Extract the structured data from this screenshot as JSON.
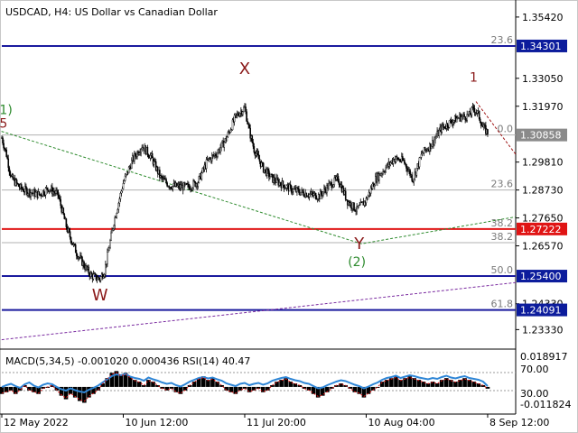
{
  "header": {
    "title": "USDCAD, H4:  US Dollar vs Canadian Dollar"
  },
  "colors": {
    "background": "#ffffff",
    "candle": "#000000",
    "blue_line": "#1a1a9e",
    "red_line": "#e01414",
    "grey_line": "#b0b0b0",
    "fib_text": "#7a7a7a",
    "green": "#2e8b2e",
    "dark_red": "#a01818",
    "wave_dark_red": "#8b1a1a",
    "purple": "#7a2aa0",
    "macd_line": "#2f86d6",
    "highlight_blue": "#0c1c9c",
    "highlight_red": "#e01414",
    "highlight_grey": "#8a8a8a"
  },
  "price_axis": {
    "min": 1.2275,
    "max": 1.358,
    "ticks": [
      "1.35420",
      "1.33050",
      "1.31970",
      "1.29810",
      "1.28730",
      "1.27650",
      "1.26570",
      "1.24330",
      "1.23330"
    ],
    "tick_values": [
      1.3542,
      1.3305,
      1.3197,
      1.2981,
      1.2873,
      1.2765,
      1.2657,
      1.2433,
      1.2333
    ]
  },
  "price_highlights": [
    {
      "label": "1.34301",
      "value": 1.34301,
      "style": "blue"
    },
    {
      "label": "1.30858",
      "value": 1.30858,
      "style": "grey"
    },
    {
      "label": "1.27222",
      "value": 1.27222,
      "style": "red"
    },
    {
      "label": "1.25400",
      "value": 1.254,
      "style": "blue"
    },
    {
      "label": "1.24091",
      "value": 1.24091,
      "style": "blue"
    }
  ],
  "fib_levels": [
    {
      "label": "23.6",
      "value": 1.34301,
      "line": "blue"
    },
    {
      "label": "0.0",
      "value": 1.30858,
      "line": "grey"
    },
    {
      "label": "23.6",
      "value": 1.2873,
      "line": "grey"
    },
    {
      "label": "38.2",
      "value": 1.27222,
      "line": "red"
    },
    {
      "label": "38.2",
      "value": 1.26695,
      "line": "grey"
    },
    {
      "label": "50.0",
      "value": 1.254,
      "line": "blue"
    },
    {
      "label": "61.8",
      "value": 1.24091,
      "line": "blue"
    }
  ],
  "wave_labels": [
    {
      "text": "X",
      "x": 52,
      "y": 1.3322,
      "color": "dark_red"
    },
    {
      "text": "1",
      "x": 101,
      "y": 1.3292,
      "color": "dark_red"
    },
    {
      "text": "W",
      "x": 21,
      "y": 1.2446,
      "color": "dark_red"
    },
    {
      "text": "Y",
      "x": 76.5,
      "y": 1.2645,
      "color": "dark_red"
    },
    {
      "text": "(2)",
      "x": 76,
      "y": 1.2578,
      "color": "green"
    },
    {
      "text": "1)",
      "x": -0.5,
      "y": 1.3167,
      "color": "green"
    },
    {
      "text": "5",
      "x": -0.5,
      "y": 1.3115,
      "color": "dark_red"
    }
  ],
  "time_axis": {
    "labels": [
      "12 May 2022",
      "10 Jun 12:00",
      "11 Jul 20:00",
      "10 Aug 04:00",
      "8 Sep 12:00"
    ],
    "label_x": [
      0,
      26,
      52,
      78,
      104
    ]
  },
  "macd_panel": {
    "header": "MACD(5,34,5) -0.001020 0.000436 RSI(14) 40.47",
    "right_labels": [
      "0.018917",
      "70.00",
      "30.00",
      "-0.011824"
    ],
    "right_values": [
      0.018917,
      70.0,
      30.0,
      -0.011824
    ],
    "histogram": [
      -0.004,
      -0.003,
      -0.002,
      -0.004,
      -0.002,
      0.001,
      -0.002,
      -0.003,
      -0.004,
      -0.001,
      0.0,
      0.001,
      -0.002,
      -0.005,
      -0.007,
      -0.004,
      -0.006,
      -0.008,
      -0.009,
      -0.006,
      -0.004,
      -0.002,
      0.002,
      0.005,
      0.008,
      0.009,
      0.007,
      0.008,
      0.006,
      0.004,
      0.003,
      0.001,
      0.004,
      0.003,
      0.001,
      -0.001,
      -0.002,
      -0.001,
      -0.003,
      -0.004,
      -0.002,
      0.001,
      0.003,
      0.005,
      0.006,
      0.004,
      0.005,
      0.003,
      0.001,
      -0.002,
      -0.003,
      -0.004,
      -0.002,
      -0.001,
      -0.003,
      -0.002,
      -0.001,
      -0.003,
      -0.002,
      0.001,
      0.003,
      0.004,
      0.005,
      0.003,
      0.002,
      0.001,
      -0.001,
      -0.002,
      -0.004,
      -0.006,
      -0.005,
      -0.003,
      -0.001,
      0.001,
      0.002,
      0.001,
      -0.001,
      -0.003,
      -0.004,
      -0.006,
      -0.004,
      -0.002,
      0.0,
      0.003,
      0.004,
      0.005,
      0.006,
      0.004,
      0.005,
      0.006,
      0.005,
      0.004,
      0.003,
      0.002,
      0.003,
      0.002,
      0.004,
      0.005,
      0.004,
      0.003,
      0.004,
      0.005,
      0.004,
      0.003,
      0.002,
      0.001,
      -0.001
    ],
    "rsi": [
      38,
      42,
      45,
      40,
      36,
      44,
      48,
      41,
      37,
      43,
      46,
      44,
      38,
      33,
      30,
      35,
      31,
      28,
      26,
      32,
      36,
      41,
      48,
      55,
      62,
      66,
      64,
      67,
      61,
      58,
      56,
      52,
      59,
      55,
      52,
      48,
      45,
      47,
      42,
      39,
      44,
      50,
      54,
      58,
      60,
      57,
      59,
      55,
      52,
      46,
      43,
      40,
      45,
      47,
      42,
      45,
      47,
      43,
      46,
      52,
      55,
      58,
      60,
      56,
      53,
      51,
      47,
      45,
      40,
      35,
      37,
      42,
      46,
      50,
      53,
      51,
      47,
      43,
      40,
      35,
      39,
      44,
      48,
      54,
      58,
      60,
      63,
      58,
      61,
      64,
      62,
      59,
      57,
      55,
      58,
      56,
      60,
      63,
      59,
      57,
      60,
      62,
      58,
      56,
      54,
      50,
      40
    ]
  },
  "chart_data": {
    "type": "candlestick",
    "title": "USDCAD, H4:  US Dollar vs Canadian Dollar",
    "x_labels": [
      "12 May 2022",
      "10 Jun 12:00",
      "11 Jul 20:00",
      "10 Aug 04:00",
      "8 Sep 12:00"
    ],
    "ylim": [
      1.2275,
      1.358
    ],
    "close_points": [
      {
        "x": 0,
        "y": 1.3075
      },
      {
        "x": 1,
        "y": 1.301
      },
      {
        "x": 2,
        "y": 1.292
      },
      {
        "x": 4,
        "y": 1.288
      },
      {
        "x": 6,
        "y": 1.2865
      },
      {
        "x": 8,
        "y": 1.2855
      },
      {
        "x": 10,
        "y": 1.288
      },
      {
        "x": 12,
        "y": 1.2855
      },
      {
        "x": 14,
        "y": 1.272
      },
      {
        "x": 16,
        "y": 1.263
      },
      {
        "x": 18,
        "y": 1.257
      },
      {
        "x": 19,
        "y": 1.2545
      },
      {
        "x": 20,
        "y": 1.2535
      },
      {
        "x": 21,
        "y": 1.253
      },
      {
        "x": 22,
        "y": 1.256
      },
      {
        "x": 24,
        "y": 1.275
      },
      {
        "x": 26,
        "y": 1.29
      },
      {
        "x": 28,
        "y": 1.299
      },
      {
        "x": 30,
        "y": 1.3045
      },
      {
        "x": 32,
        "y": 1.3
      },
      {
        "x": 34,
        "y": 1.292
      },
      {
        "x": 36,
        "y": 1.289
      },
      {
        "x": 38,
        "y": 1.2885
      },
      {
        "x": 40,
        "y": 1.2885
      },
      {
        "x": 42,
        "y": 1.2905
      },
      {
        "x": 44,
        "y": 1.2985
      },
      {
        "x": 46,
        "y": 1.3015
      },
      {
        "x": 48,
        "y": 1.307
      },
      {
        "x": 50,
        "y": 1.3155
      },
      {
        "x": 51,
        "y": 1.3175
      },
      {
        "x": 52,
        "y": 1.319
      },
      {
        "x": 53,
        "y": 1.31
      },
      {
        "x": 54,
        "y": 1.303
      },
      {
        "x": 56,
        "y": 1.2955
      },
      {
        "x": 58,
        "y": 1.2915
      },
      {
        "x": 60,
        "y": 1.2895
      },
      {
        "x": 62,
        "y": 1.2875
      },
      {
        "x": 64,
        "y": 1.2865
      },
      {
        "x": 66,
        "y": 1.2855
      },
      {
        "x": 68,
        "y": 1.285
      },
      {
        "x": 70,
        "y": 1.289
      },
      {
        "x": 72,
        "y": 1.2915
      },
      {
        "x": 74,
        "y": 1.283
      },
      {
        "x": 76,
        "y": 1.2795
      },
      {
        "x": 78,
        "y": 1.2835
      },
      {
        "x": 80,
        "y": 1.2915
      },
      {
        "x": 82,
        "y": 1.2955
      },
      {
        "x": 84,
        "y": 1.2995
      },
      {
        "x": 86,
        "y": 1.2985
      },
      {
        "x": 88,
        "y": 1.2915
      },
      {
        "x": 90,
        "y": 1.3015
      },
      {
        "x": 92,
        "y": 1.305
      },
      {
        "x": 94,
        "y": 1.311
      },
      {
        "x": 96,
        "y": 1.3135
      },
      {
        "x": 98,
        "y": 1.3155
      },
      {
        "x": 100,
        "y": 1.316
      },
      {
        "x": 101,
        "y": 1.319
      },
      {
        "x": 102,
        "y": 1.3165
      },
      {
        "x": 103,
        "y": 1.3115
      },
      {
        "x": 104,
        "y": 1.3095
      }
    ],
    "trend_lines": [
      {
        "name": "green",
        "points": [
          {
            "x": -1,
            "y": 1.3105
          },
          {
            "x": 77,
            "y": 1.2665
          },
          {
            "x": 110,
            "y": 1.2769
          }
        ]
      },
      {
        "name": "purple",
        "points": [
          {
            "x": -1,
            "y": 1.2292
          },
          {
            "x": 110,
            "y": 1.2515
          }
        ]
      },
      {
        "name": "red",
        "points": [
          {
            "x": 101.5,
            "y": 1.3215
          },
          {
            "x": 110,
            "y": 1.3011
          }
        ]
      }
    ]
  }
}
